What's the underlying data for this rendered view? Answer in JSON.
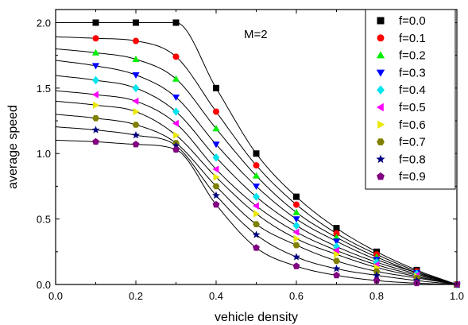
{
  "chart_data": {
    "type": "scatter",
    "title": "",
    "annotation": "M=2",
    "xlabel": "vehicle density",
    "ylabel": "average speed",
    "xlim": [
      0.0,
      1.0
    ],
    "ylim": [
      0.0,
      2.1
    ],
    "x_ticks": [
      0.0,
      0.2,
      0.4,
      0.6,
      0.8,
      1.0
    ],
    "x_tick_labels": [
      "0.0",
      "0.2",
      "0.4",
      "0.6",
      "0.8",
      "1.0"
    ],
    "y_ticks": [
      0.0,
      0.5,
      1.0,
      1.5,
      2.0
    ],
    "y_tick_labels": [
      "0.0",
      "0.5",
      "1.0",
      "1.5",
      "2.0"
    ],
    "grid": false,
    "legend_position": "top-right",
    "x": [
      0.1,
      0.2,
      0.3,
      0.4,
      0.5,
      0.6,
      0.7,
      0.8,
      0.9,
      1.0
    ],
    "series": [
      {
        "name": "f=0.0",
        "marker": "square",
        "color": "#000000",
        "values": [
          2.0,
          2.0,
          2.0,
          1.5,
          1.0,
          0.67,
          0.43,
          0.25,
          0.11,
          0.0
        ]
      },
      {
        "name": "f=0.1",
        "marker": "circle",
        "color": "#ff0000",
        "values": [
          1.88,
          1.86,
          1.74,
          1.32,
          0.91,
          0.61,
          0.39,
          0.23,
          0.1,
          0.0
        ]
      },
      {
        "name": "f=0.2",
        "marker": "triangle-up",
        "color": "#00ee00",
        "values": [
          1.77,
          1.72,
          1.57,
          1.19,
          0.83,
          0.55,
          0.36,
          0.21,
          0.09,
          0.0
        ]
      },
      {
        "name": "f=0.3",
        "marker": "triangle-down",
        "color": "#0000ff",
        "values": [
          1.67,
          1.6,
          1.43,
          1.07,
          0.75,
          0.5,
          0.33,
          0.19,
          0.09,
          0.0
        ]
      },
      {
        "name": "f=0.4",
        "marker": "diamond",
        "color": "#00e5ee",
        "values": [
          1.56,
          1.5,
          1.32,
          0.97,
          0.67,
          0.45,
          0.29,
          0.17,
          0.08,
          0.0
        ]
      },
      {
        "name": "f=0.5",
        "marker": "triangle-left",
        "color": "#ff00ff",
        "values": [
          1.45,
          1.4,
          1.23,
          0.88,
          0.6,
          0.4,
          0.26,
          0.15,
          0.07,
          0.0
        ]
      },
      {
        "name": "f=0.6",
        "marker": "triangle-right",
        "color": "#e8e800",
        "values": [
          1.37,
          1.32,
          1.14,
          0.82,
          0.54,
          0.35,
          0.23,
          0.13,
          0.06,
          0.0
        ]
      },
      {
        "name": "f=0.7",
        "marker": "hexagon",
        "color": "#808000",
        "values": [
          1.27,
          1.22,
          1.08,
          0.75,
          0.46,
          0.3,
          0.18,
          0.1,
          0.05,
          0.0
        ]
      },
      {
        "name": "f=0.8",
        "marker": "star",
        "color": "#000080",
        "values": [
          1.18,
          1.14,
          1.06,
          0.68,
          0.38,
          0.21,
          0.12,
          0.07,
          0.03,
          0.0
        ]
      },
      {
        "name": "f=0.9",
        "marker": "pentagon",
        "color": "#800080",
        "values": [
          1.09,
          1.07,
          1.03,
          0.61,
          0.28,
          0.14,
          0.07,
          0.03,
          0.01,
          0.0
        ]
      }
    ]
  }
}
